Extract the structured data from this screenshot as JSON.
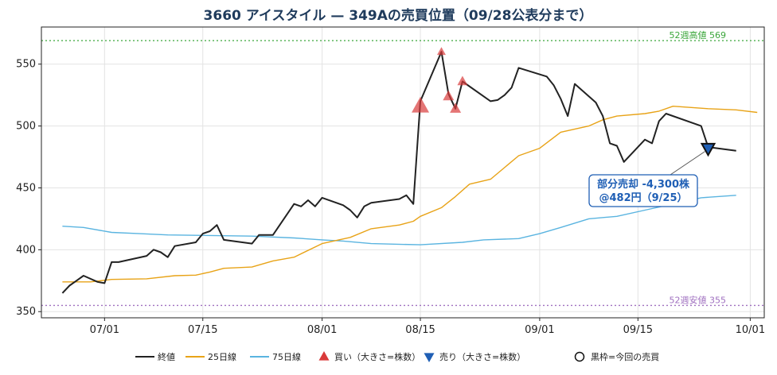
{
  "chart_data": {
    "type": "line",
    "title": "3660 アイスタイル — 349Aの売買位置（09/28公表分まで）",
    "ylim": [
      345,
      580
    ],
    "xlim": [
      "2025-06-22",
      "2025-10-03"
    ],
    "yticks": [
      350,
      400,
      450,
      500,
      550
    ],
    "xticks": [
      {
        "date": "2025-07-01",
        "label": "07/01"
      },
      {
        "date": "2025-07-15",
        "label": "07/15"
      },
      {
        "date": "2025-08-01",
        "label": "08/01"
      },
      {
        "date": "2025-08-15",
        "label": "08/15"
      },
      {
        "date": "2025-09-01",
        "label": "09/01"
      },
      {
        "date": "2025-09-15",
        "label": "09/15"
      },
      {
        "date": "2025-10-01",
        "label": "10/01"
      }
    ],
    "grid": true,
    "colors": {
      "close": "#222222",
      "ma25": "#e8a317",
      "ma75": "#5ab4e0",
      "buy": "#d93a3a",
      "sell": "#1f5fb5",
      "high": "#3aa63a",
      "low": "#a070c0"
    },
    "series": [
      {
        "name": "終値",
        "key": "close",
        "points": [
          [
            "2025-06-25",
            365
          ],
          [
            "2025-06-26",
            371
          ],
          [
            "2025-06-27",
            375
          ],
          [
            "2025-06-28",
            379
          ],
          [
            "2025-06-30",
            374
          ],
          [
            "2025-07-01",
            373
          ],
          [
            "2025-07-02",
            390
          ],
          [
            "2025-07-03",
            390
          ],
          [
            "2025-07-07",
            395
          ],
          [
            "2025-07-08",
            400
          ],
          [
            "2025-07-09",
            398
          ],
          [
            "2025-07-10",
            394
          ],
          [
            "2025-07-11",
            403
          ],
          [
            "2025-07-14",
            406
          ],
          [
            "2025-07-15",
            413
          ],
          [
            "2025-07-16",
            415
          ],
          [
            "2025-07-17",
            420
          ],
          [
            "2025-07-18",
            408
          ],
          [
            "2025-07-22",
            405
          ],
          [
            "2025-07-23",
            412
          ],
          [
            "2025-07-24",
            412
          ],
          [
            "2025-07-25",
            412
          ],
          [
            "2025-07-28",
            437
          ],
          [
            "2025-07-29",
            435
          ],
          [
            "2025-07-30",
            440
          ],
          [
            "2025-07-31",
            435
          ],
          [
            "2025-08-01",
            442
          ],
          [
            "2025-08-04",
            436
          ],
          [
            "2025-08-05",
            432
          ],
          [
            "2025-08-06",
            426
          ],
          [
            "2025-08-07",
            435
          ],
          [
            "2025-08-08",
            438
          ],
          [
            "2025-08-12",
            441
          ],
          [
            "2025-08-13",
            444
          ],
          [
            "2025-08-14",
            437
          ],
          [
            "2025-08-15",
            520
          ],
          [
            "2025-08-18",
            560
          ],
          [
            "2025-08-19",
            526
          ],
          [
            "2025-08-20",
            514
          ],
          [
            "2025-08-21",
            536
          ],
          [
            "2025-08-25",
            520
          ],
          [
            "2025-08-26",
            521
          ],
          [
            "2025-08-27",
            525
          ],
          [
            "2025-08-28",
            531
          ],
          [
            "2025-08-29",
            547
          ],
          [
            "2025-09-02",
            540
          ],
          [
            "2025-09-03",
            533
          ],
          [
            "2025-09-04",
            522
          ],
          [
            "2025-09-05",
            508
          ],
          [
            "2025-09-06",
            534
          ],
          [
            "2025-09-09",
            519
          ],
          [
            "2025-09-10",
            508
          ],
          [
            "2025-09-11",
            486
          ],
          [
            "2025-09-12",
            484
          ],
          [
            "2025-09-13",
            471
          ],
          [
            "2025-09-16",
            489
          ],
          [
            "2025-09-17",
            486
          ],
          [
            "2025-09-18",
            504
          ],
          [
            "2025-09-19",
            510
          ],
          [
            "2025-09-24",
            500
          ],
          [
            "2025-09-25",
            483
          ],
          [
            "2025-09-29",
            480
          ]
        ]
      },
      {
        "name": "25日線",
        "key": "ma25",
        "points": [
          [
            "2025-06-25",
            374
          ],
          [
            "2025-06-29",
            374
          ],
          [
            "2025-07-02",
            376
          ],
          [
            "2025-07-07",
            376.5
          ],
          [
            "2025-07-11",
            379
          ],
          [
            "2025-07-14",
            379.5
          ],
          [
            "2025-07-16",
            382
          ],
          [
            "2025-07-18",
            385
          ],
          [
            "2025-07-22",
            386
          ],
          [
            "2025-07-25",
            391
          ],
          [
            "2025-07-28",
            394
          ],
          [
            "2025-08-01",
            405
          ],
          [
            "2025-08-05",
            410
          ],
          [
            "2025-08-08",
            417
          ],
          [
            "2025-08-12",
            420
          ],
          [
            "2025-08-14",
            423
          ],
          [
            "2025-08-15",
            427
          ],
          [
            "2025-08-18",
            434
          ],
          [
            "2025-08-20",
            443
          ],
          [
            "2025-08-22",
            453
          ],
          [
            "2025-08-25",
            457
          ],
          [
            "2025-08-29",
            476
          ],
          [
            "2025-09-01",
            482
          ],
          [
            "2025-09-04",
            495
          ],
          [
            "2025-09-08",
            500
          ],
          [
            "2025-09-10",
            505
          ],
          [
            "2025-09-12",
            508
          ],
          [
            "2025-09-16",
            510
          ],
          [
            "2025-09-18",
            512
          ],
          [
            "2025-09-20",
            516
          ],
          [
            "2025-09-25",
            514
          ],
          [
            "2025-09-29",
            513
          ],
          [
            "2025-10-02",
            511
          ]
        ]
      },
      {
        "name": "75日線",
        "key": "ma75",
        "points": [
          [
            "2025-06-25",
            419
          ],
          [
            "2025-06-28",
            418
          ],
          [
            "2025-07-02",
            414
          ],
          [
            "2025-07-06",
            413
          ],
          [
            "2025-07-10",
            412
          ],
          [
            "2025-07-16",
            411.5
          ],
          [
            "2025-07-22",
            411
          ],
          [
            "2025-07-28",
            409.5
          ],
          [
            "2025-08-01",
            408
          ],
          [
            "2025-08-04",
            407
          ],
          [
            "2025-08-08",
            405
          ],
          [
            "2025-08-15",
            404
          ],
          [
            "2025-08-21",
            406
          ],
          [
            "2025-08-24",
            408
          ],
          [
            "2025-08-29",
            409
          ],
          [
            "2025-09-01",
            413
          ],
          [
            "2025-09-04",
            418
          ],
          [
            "2025-09-08",
            425
          ],
          [
            "2025-09-12",
            427
          ],
          [
            "2025-09-16",
            432
          ],
          [
            "2025-09-20",
            437
          ],
          [
            "2025-09-24",
            442
          ],
          [
            "2025-09-29",
            444
          ]
        ]
      }
    ],
    "buys": [
      {
        "date": "2025-08-15",
        "price": 516,
        "size": 22
      },
      {
        "date": "2025-08-18",
        "price": 560,
        "size": 11
      },
      {
        "date": "2025-08-19",
        "price": 524,
        "size": 14
      },
      {
        "date": "2025-08-20",
        "price": 514,
        "size": 14
      },
      {
        "date": "2025-08-21",
        "price": 536,
        "size": 13
      }
    ],
    "sells": [
      {
        "date": "2025-09-25",
        "price": 482,
        "size": 16
      }
    ],
    "reference_lines": [
      {
        "key": "high",
        "label": "52週高値 569",
        "value": 569
      },
      {
        "key": "low",
        "label": "52週安値 355",
        "value": 355
      }
    ],
    "annotation": {
      "lines": [
        "部分売却 -4,300株",
        "@482円（9/25）"
      ],
      "date": "2025-09-25",
      "price": 482
    },
    "legend": {
      "placement": "bottom",
      "items": [
        {
          "label": "終値",
          "kind": "line",
          "key": "close"
        },
        {
          "label": "25日線",
          "kind": "line",
          "key": "ma25"
        },
        {
          "label": "75日線",
          "kind": "line",
          "key": "ma75"
        },
        {
          "label": "買い（大きさ=株数）",
          "kind": "buy"
        },
        {
          "label": "売り（大きさ=株数）",
          "kind": "sell"
        },
        {
          "label": "黒枠=今回の売買",
          "kind": "circle"
        }
      ]
    }
  }
}
